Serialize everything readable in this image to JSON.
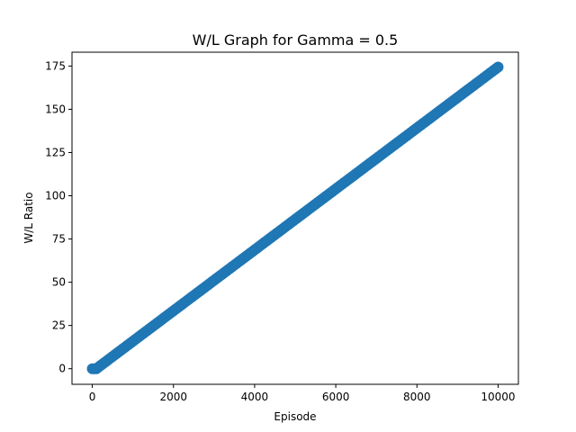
{
  "chart_data": {
    "type": "scatter",
    "title": "W/L Graph for Gamma = 0.5",
    "xlabel": "Episode",
    "ylabel": "W/L Ratio",
    "xlim": [
      -500,
      10500
    ],
    "ylim": [
      -9,
      183
    ],
    "xticks": [
      0,
      2000,
      4000,
      6000,
      8000,
      10000
    ],
    "yticks": [
      0,
      25,
      50,
      75,
      100,
      125,
      150,
      175
    ],
    "grid": false,
    "series": [
      {
        "name": "W/L Ratio",
        "color": "#1f77b4",
        "x_start": 0,
        "x_end": 10000,
        "x_step": 50,
        "points": [
          [
            0,
            0
          ],
          [
            100,
            0
          ],
          [
            150,
            0.9
          ],
          [
            10000,
            174.4
          ]
        ]
      }
    ]
  }
}
